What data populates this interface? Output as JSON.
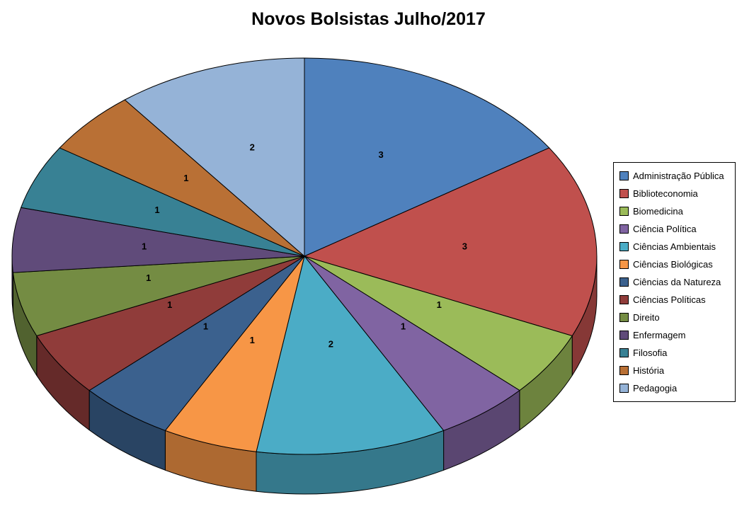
{
  "chart_data": {
    "type": "pie",
    "style": "3d-pie",
    "title": "Novos Bolsistas Julho/2017",
    "categories": [
      "Administração Pública",
      "Biblioteconomia",
      "Biomedicina",
      "Ciência Política",
      "Ciências Ambientais",
      "Ciências Biológicas",
      "Ciências da Natureza",
      "Ciências Políticas",
      "Direito",
      "Enfermagem",
      "Filosofia",
      "História",
      "Pedagogia"
    ],
    "values": [
      3,
      3,
      1,
      1,
      2,
      1,
      1,
      1,
      1,
      1,
      1,
      1,
      2
    ],
    "colors": [
      "#4F81BD",
      "#C0504D",
      "#9BBB59",
      "#8064A2",
      "#4BACC6",
      "#F79646",
      "#3B618E",
      "#903C3A",
      "#748C43",
      "#604B7A",
      "#388194",
      "#B97035",
      "#95B3D7"
    ],
    "data_labels": "values",
    "start_angle_deg": 0,
    "legend_position": "right",
    "background": "#FFFFFF"
  }
}
